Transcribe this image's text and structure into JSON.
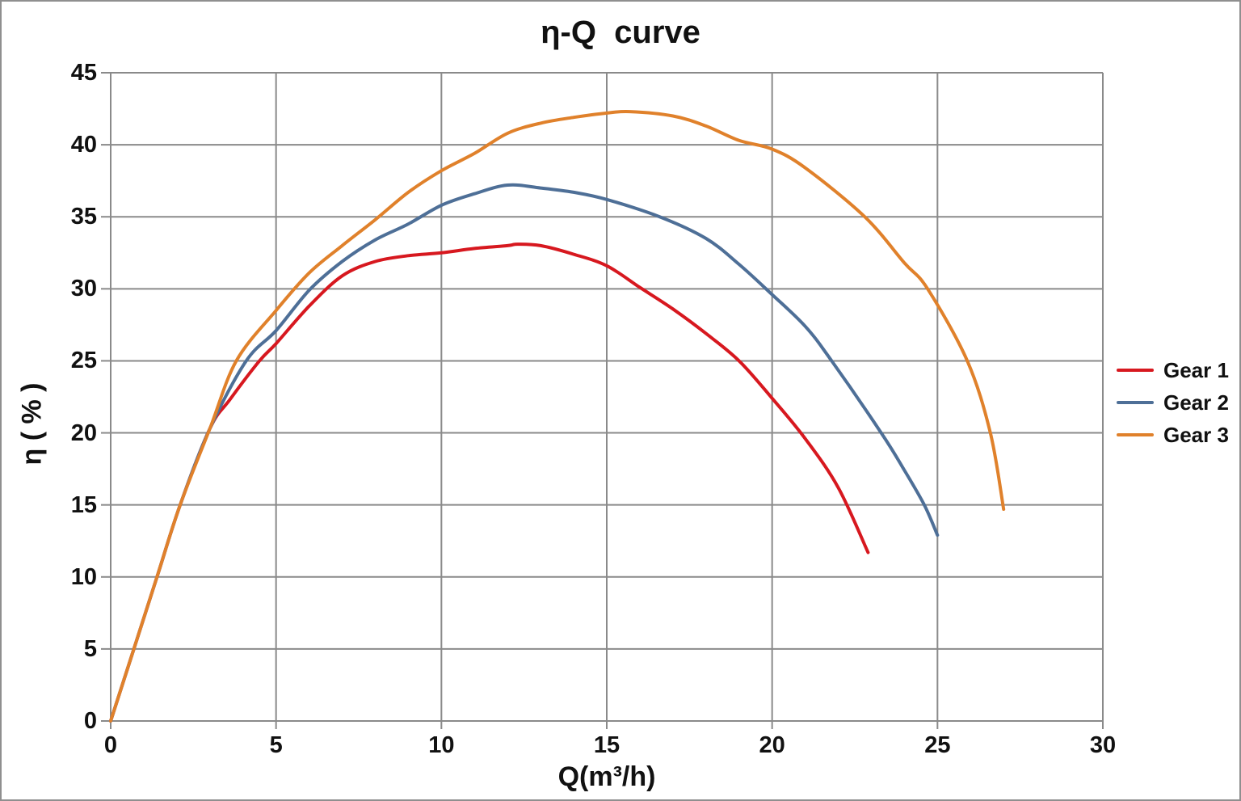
{
  "title": "η-Q  curve",
  "axes": {
    "x": {
      "title": "Q(m³/h)",
      "ticks": [
        0,
        5,
        10,
        15,
        20,
        25,
        30
      ],
      "min": 0,
      "max": 30
    },
    "y": {
      "title": "η ( % )",
      "ticks": [
        0,
        5,
        10,
        15,
        20,
        25,
        30,
        35,
        40,
        45
      ],
      "min": 0,
      "max": 45
    }
  },
  "colors": {
    "gear1": "#d7181f",
    "gear2": "#4e6f97",
    "gear3": "#e0812b",
    "grid": "#8a8a8a",
    "text": "#111111",
    "background": "#ffffff"
  },
  "legend": [
    {
      "label": "Gear 1",
      "color": "#d7181f"
    },
    {
      "label": "Gear 2",
      "color": "#4e6f97"
    },
    {
      "label": "Gear 3",
      "color": "#e0812b"
    }
  ],
  "chart_data": {
    "type": "line",
    "title": "η-Q  curve",
    "xlabel": "Q(m³/h)",
    "ylabel": "η ( % )",
    "xlim": [
      0,
      30
    ],
    "ylim": [
      0,
      45
    ],
    "grid": true,
    "legend_position": "right",
    "series": [
      {
        "name": "Gear 1",
        "color": "#d7181f",
        "points": [
          [
            0,
            0
          ],
          [
            0.7,
            5
          ],
          [
            1.4,
            10
          ],
          [
            2.1,
            15
          ],
          [
            3,
            20.3
          ],
          [
            3.6,
            22.3
          ],
          [
            4.5,
            25
          ],
          [
            5,
            26.2
          ],
          [
            6,
            28.8
          ],
          [
            7,
            30.9
          ],
          [
            8,
            31.9
          ],
          [
            9,
            32.3
          ],
          [
            10,
            32.5
          ],
          [
            11,
            32.8
          ],
          [
            12,
            33.0
          ],
          [
            12.3,
            33.1
          ],
          [
            13,
            33.0
          ],
          [
            14,
            32.4
          ],
          [
            15,
            31.6
          ],
          [
            16,
            30.1
          ],
          [
            17,
            28.6
          ],
          [
            18,
            26.9
          ],
          [
            19,
            25.0
          ],
          [
            20,
            22.4
          ],
          [
            21,
            19.6
          ],
          [
            22,
            16.2
          ],
          [
            22.9,
            11.7
          ]
        ]
      },
      {
        "name": "Gear 2",
        "color": "#4e6f97",
        "points": [
          [
            0,
            0
          ],
          [
            0.7,
            5
          ],
          [
            1.4,
            10
          ],
          [
            2.1,
            15
          ],
          [
            3,
            20.3
          ],
          [
            4.1,
            25
          ],
          [
            5,
            27.1
          ],
          [
            6,
            29.9
          ],
          [
            7,
            31.9
          ],
          [
            8,
            33.4
          ],
          [
            9,
            34.5
          ],
          [
            10,
            35.8
          ],
          [
            11,
            36.6
          ],
          [
            12,
            37.2
          ],
          [
            13,
            37.0
          ],
          [
            14,
            36.7
          ],
          [
            15,
            36.2
          ],
          [
            16.6,
            35
          ],
          [
            18,
            33.5
          ],
          [
            19,
            31.7
          ],
          [
            20,
            29.6
          ],
          [
            21,
            27.4
          ],
          [
            21.8,
            25
          ],
          [
            23.3,
            20
          ],
          [
            24,
            17.4
          ],
          [
            24.6,
            15
          ],
          [
            25,
            12.9
          ]
        ]
      },
      {
        "name": "Gear 3",
        "color": "#e0812b",
        "points": [
          [
            0,
            0
          ],
          [
            0.7,
            5
          ],
          [
            1.4,
            10
          ],
          [
            2.1,
            15
          ],
          [
            3,
            20.3
          ],
          [
            3.8,
            25
          ],
          [
            5,
            28.5
          ],
          [
            6,
            31.1
          ],
          [
            7,
            33.0
          ],
          [
            8,
            34.8
          ],
          [
            9,
            36.7
          ],
          [
            10,
            38.2
          ],
          [
            11,
            39.4
          ],
          [
            12,
            40.8
          ],
          [
            13,
            41.5
          ],
          [
            14,
            41.9
          ],
          [
            15,
            42.2
          ],
          [
            15.7,
            42.3
          ],
          [
            17,
            42.0
          ],
          [
            18,
            41.3
          ],
          [
            19,
            40.3
          ],
          [
            20,
            39.7
          ],
          [
            21,
            38.4
          ],
          [
            22.8,
            35
          ],
          [
            24,
            31.8
          ],
          [
            24.7,
            30
          ],
          [
            25.9,
            25
          ],
          [
            26.6,
            20
          ],
          [
            27,
            14.7
          ]
        ]
      }
    ]
  }
}
